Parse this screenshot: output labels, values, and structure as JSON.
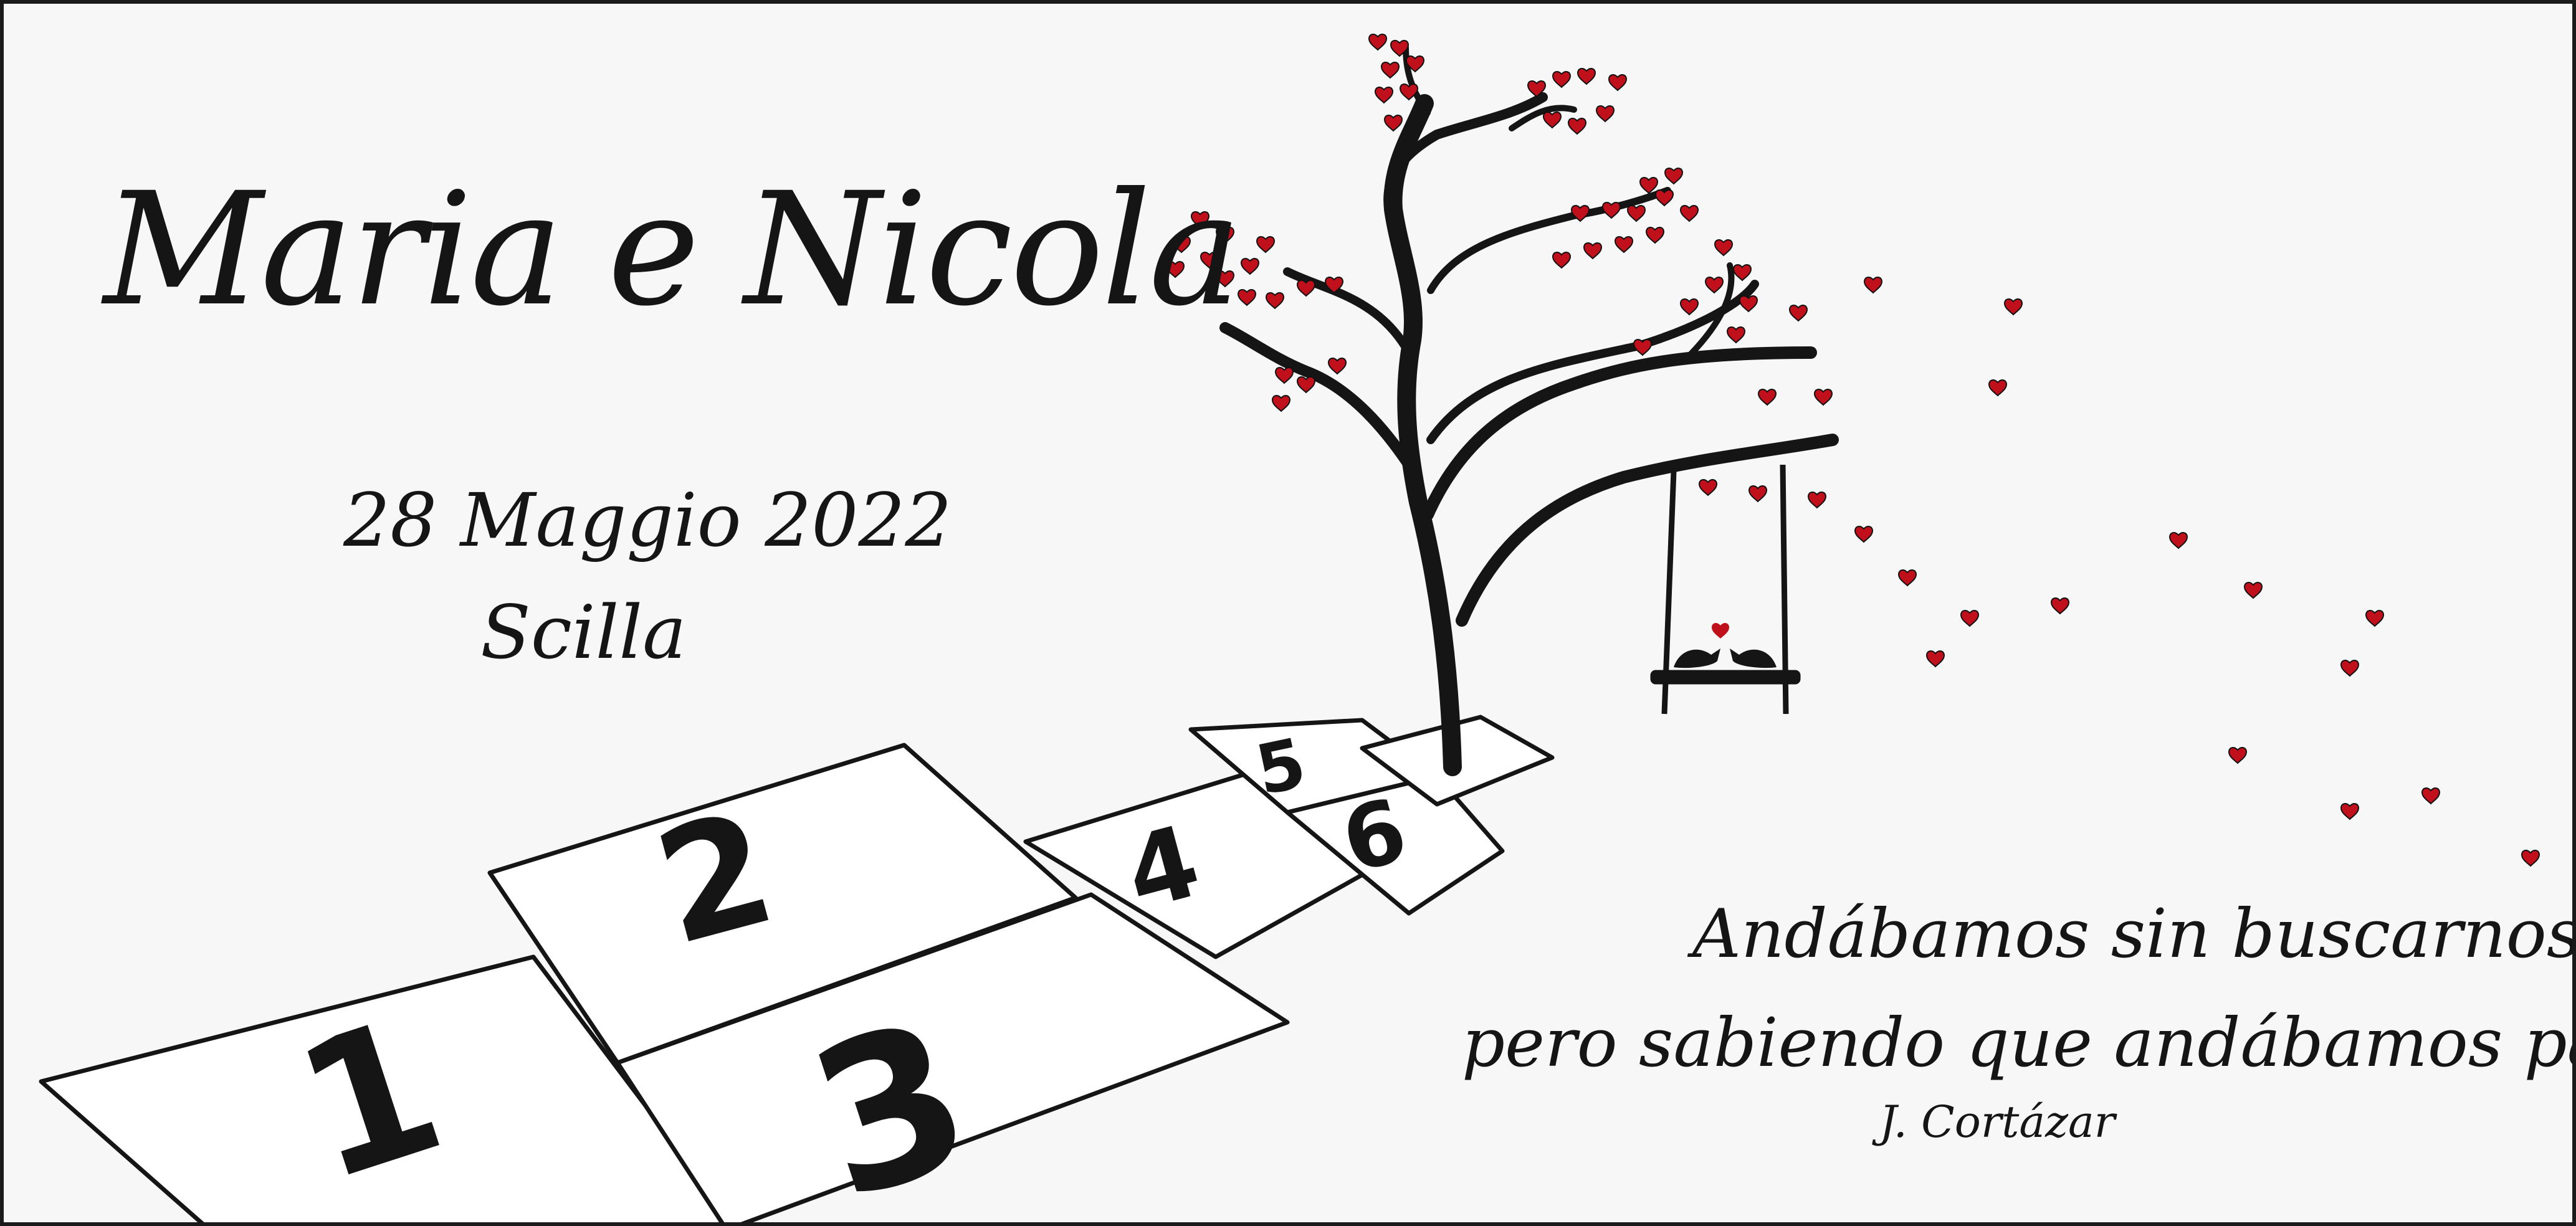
{
  "card": {
    "names": "Maria e Nicola",
    "date": "28 Maggio 2022",
    "place": "Scilla",
    "quote_line1": "Andábamos sin buscarnos",
    "quote_line2": "pero sabiendo que andábamos para encontrarnos",
    "quote_author": "J. Cortázar"
  },
  "hopscotch_numbers": [
    "1",
    "2",
    "3",
    "4",
    "5",
    "6"
  ],
  "colors": {
    "ink": "#151515",
    "heart": "#c0101c",
    "background": "#f7f7f7"
  },
  "icons": [
    "tree-icon",
    "heart-icon",
    "swing-icon",
    "bird-icon"
  ]
}
